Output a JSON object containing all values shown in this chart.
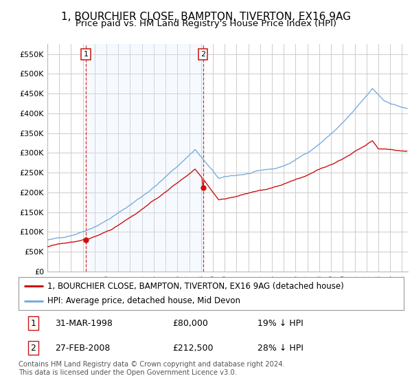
{
  "title": "1, BOURCHIER CLOSE, BAMPTON, TIVERTON, EX16 9AG",
  "subtitle": "Price paid vs. HM Land Registry's House Price Index (HPI)",
  "ylabel_ticks": [
    "£0",
    "£50K",
    "£100K",
    "£150K",
    "£200K",
    "£250K",
    "£300K",
    "£350K",
    "£400K",
    "£450K",
    "£500K",
    "£550K"
  ],
  "ylim": [
    0,
    575000
  ],
  "xlim_start": 1995.0,
  "xlim_end": 2025.5,
  "sale1_date": 1998.25,
  "sale1_price": 80000,
  "sale2_date": 2008.167,
  "sale2_price": 212500,
  "hpi_line_color": "#7aaddb",
  "price_line_color": "#cc1111",
  "vline_color": "#cc1111",
  "shade_color": "#ddeeff",
  "grid_color": "#cccccc",
  "bg_color": "#ffffff",
  "legend_label1": "1, BOURCHIER CLOSE, BAMPTON, TIVERTON, EX16 9AG (detached house)",
  "legend_label2": "HPI: Average price, detached house, Mid Devon",
  "table_row1": [
    "1",
    "31-MAR-1998",
    "£80,000",
    "19% ↓ HPI"
  ],
  "table_row2": [
    "2",
    "27-FEB-2008",
    "£212,500",
    "28% ↓ HPI"
  ],
  "footnote": "Contains HM Land Registry data © Crown copyright and database right 2024.\nThis data is licensed under the Open Government Licence v3.0.",
  "title_fontsize": 11,
  "subtitle_fontsize": 9.5,
  "tick_fontsize": 8,
  "legend_fontsize": 8.5
}
